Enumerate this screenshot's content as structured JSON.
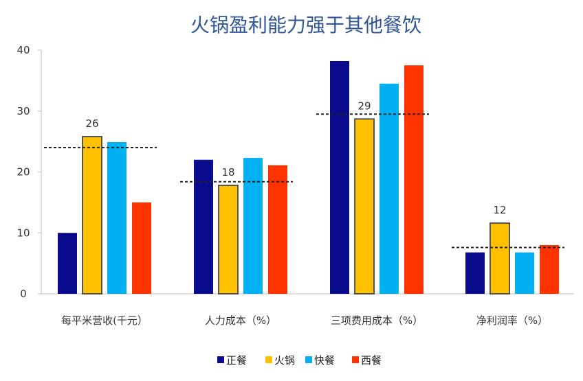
{
  "chart_data": {
    "type": "bar",
    "title": "火锅盈利能力强于其他餐饮",
    "categories": [
      "每平米营收(千元）",
      "人力成本（%）",
      "三项费用成本（%）",
      "净利润率（%）"
    ],
    "series": [
      {
        "name": "正餐",
        "color": "#0a0a8c",
        "values": [
          10,
          22,
          38.2,
          6.8
        ]
      },
      {
        "name": "火锅",
        "color": "#ffc000",
        "values": [
          25.8,
          17.8,
          28.7,
          11.6
        ],
        "highlight": true
      },
      {
        "name": "快餐",
        "color": "#00b0f0",
        "values": [
          24.9,
          22.3,
          34.5,
          6.8
        ]
      },
      {
        "name": "西餐",
        "color": "#ff3300",
        "values": [
          15,
          21.1,
          37.5,
          8
        ]
      }
    ],
    "data_labels": [
      "26",
      "18",
      "29",
      "12"
    ],
    "reference_lines": [
      24,
      18.4,
      29.5,
      7.6
    ],
    "ylim": [
      0,
      40
    ],
    "yticks": [
      "0",
      "10",
      "20",
      "30",
      "40"
    ],
    "xlabel": "",
    "ylabel": "",
    "legend_position": "bottom",
    "grid": false
  }
}
